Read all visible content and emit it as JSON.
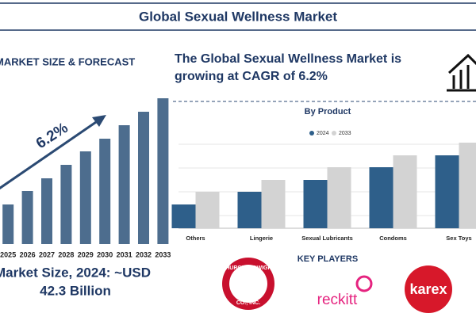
{
  "header": {
    "title": "Global Sexual Wellness Market"
  },
  "headline": [
    "The Global Sexual Wellness Market is",
    "growing at CAGR of 6.2%"
  ],
  "market_size": [
    "Market Size, 2024: ~USD",
    "42.3 Billion"
  ],
  "key_players": {
    "title": "KEY PLAYERS",
    "companies": [
      [
        "CHURCH & DWIGHT",
        "CO., INC."
      ],
      [
        "reckitt"
      ],
      [
        "karex"
      ]
    ]
  },
  "chart_data": [
    {
      "type": "bar",
      "title": "MARKET SIZE & FORECAST",
      "annotation": "6.2%",
      "categories": [
        "2025",
        "2026",
        "2027",
        "2028",
        "2029",
        "2030",
        "2031",
        "2032",
        "2033"
      ],
      "values": [
        50,
        67,
        83,
        100,
        117,
        133,
        150,
        167,
        184
      ],
      "color": "#4d6d8e"
    },
    {
      "type": "bar",
      "title": "By Product",
      "categories": [
        "Others",
        "Lingerie",
        "Sexual Lubricants",
        "Condoms",
        "Sex Toys"
      ],
      "series": [
        {
          "name": "2024",
          "color": "#2e5f8a",
          "values": [
            30,
            46,
            61,
            77,
            92
          ]
        },
        {
          "name": "2033",
          "color": "#d3d3d3",
          "values": [
            46,
            61,
            77,
            92,
            108
          ]
        }
      ]
    }
  ]
}
